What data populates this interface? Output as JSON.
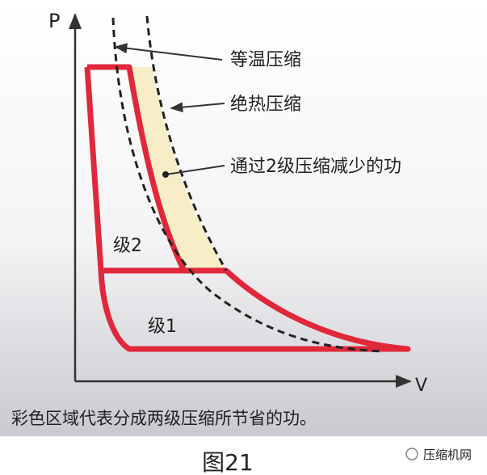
{
  "axes": {
    "y_label": "P",
    "x_label": "V"
  },
  "annotations": {
    "isothermal": "等温压缩",
    "adiabatic": "绝热压缩",
    "saved_work": "通过2级压缩减少的功",
    "stage2": "级2",
    "stage1": "级1"
  },
  "caption": "彩色区域代表分成两级压缩所节省的功。",
  "figure_label": "图21",
  "watermark": "压缩机网"
}
